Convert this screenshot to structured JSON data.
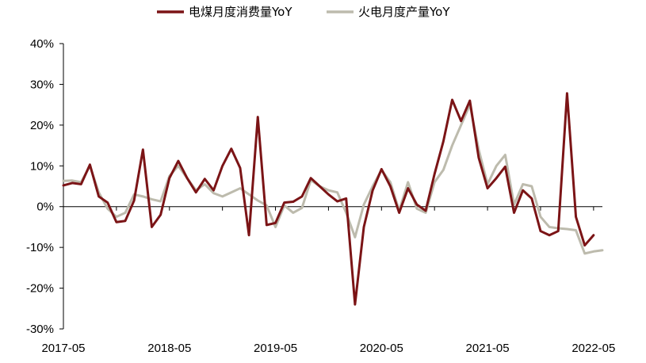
{
  "chart_data": {
    "type": "line",
    "x": [
      "2017-05",
      "2017-06",
      "2017-07",
      "2017-08",
      "2017-09",
      "2017-10",
      "2017-11",
      "2017-12",
      "2018-01",
      "2018-02",
      "2018-03",
      "2018-04",
      "2018-05",
      "2018-06",
      "2018-07",
      "2018-08",
      "2018-09",
      "2018-10",
      "2018-11",
      "2018-12",
      "2019-01",
      "2019-02",
      "2019-03",
      "2019-04",
      "2019-05",
      "2019-06",
      "2019-07",
      "2019-08",
      "2019-09",
      "2019-10",
      "2019-11",
      "2019-12",
      "2020-01",
      "2020-02",
      "2020-03",
      "2020-04",
      "2020-05",
      "2020-06",
      "2020-07",
      "2020-08",
      "2020-09",
      "2020-10",
      "2020-11",
      "2020-12",
      "2021-01",
      "2021-02",
      "2021-03",
      "2021-04",
      "2021-05",
      "2021-06",
      "2021-07",
      "2021-08",
      "2021-09",
      "2021-10",
      "2021-11",
      "2021-12",
      "2022-01",
      "2022-02",
      "2022-03",
      "2022-04",
      "2022-05",
      "2022-06"
    ],
    "x_tick_labels": [
      "2017-05",
      "2018-05",
      "2019-05",
      "2020-05",
      "2021-05",
      "2022-05"
    ],
    "y_tick_labels": [
      "40%",
      "30%",
      "20%",
      "10%",
      "0%",
      "-10%",
      "-20%",
      "-30%"
    ],
    "ylim": [
      -30,
      40
    ],
    "ytick_step": 10,
    "legend_position": "top",
    "grid": false,
    "series": [
      {
        "name": "电煤月度消费量YoY",
        "color": "#7b1416",
        "values": [
          5.2,
          5.8,
          5.5,
          10.3,
          2.5,
          1.0,
          -3.8,
          -3.5,
          1.5,
          14.0,
          -5.0,
          -2.0,
          7.0,
          11.2,
          7.0,
          3.5,
          6.8,
          4.0,
          10.0,
          14.2,
          9.5,
          -7.0,
          22.0,
          -4.5,
          -4.0,
          1.0,
          1.2,
          2.5,
          7.0,
          5.0,
          3.0,
          1.3,
          2.0,
          -24.0,
          -5.0,
          4.0,
          9.2,
          5.0,
          -1.5,
          4.5,
          0.5,
          -1.0,
          8.0,
          16.0,
          26.2,
          21.0,
          26.0,
          12.0,
          4.5,
          7.0,
          9.8,
          -1.5,
          4.0,
          2.0,
          -6.0,
          -7.0,
          -6.0,
          27.8,
          -2.5,
          -9.5,
          -7.0,
          null
        ]
      },
      {
        "name": "火电月度产量YoY",
        "color": "#bdbbad",
        "values": [
          6.3,
          6.4,
          6.0,
          10.0,
          3.5,
          -0.5,
          -2.5,
          -1.5,
          3.0,
          2.5,
          1.8,
          1.3,
          7.5,
          10.0,
          7.0,
          4.0,
          5.5,
          3.3,
          2.5,
          3.5,
          4.5,
          3.0,
          1.5,
          0.3,
          -5.0,
          0.3,
          -1.5,
          -0.3,
          6.5,
          5.0,
          4.0,
          3.5,
          -1.5,
          -7.5,
          0.5,
          5.0,
          9.0,
          6.0,
          -1.0,
          6.0,
          -0.5,
          -1.5,
          6.0,
          9.0,
          15.0,
          20.0,
          25.0,
          14.0,
          5.5,
          10.0,
          12.7,
          0.5,
          5.5,
          5.0,
          -2.5,
          -5.0,
          -5.3,
          -5.5,
          -5.8,
          -11.5,
          -11.0,
          -10.7
        ]
      }
    ]
  }
}
